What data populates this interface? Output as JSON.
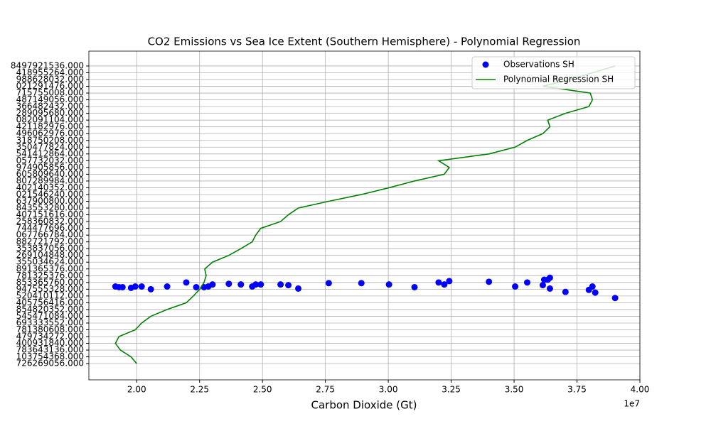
{
  "chart_data": {
    "type": "scatter",
    "title": "CO2 Emissions vs Sea Ice Extent (Southern Hemisphere) - Polynomial Regression",
    "xlabel": "Carbon Dioxide (Gt)",
    "x_offset_label": "1e7",
    "xlim": [
      18100000,
      40000000
    ],
    "xticks": [
      {
        "value": 20000000,
        "label": "2.00"
      },
      {
        "value": 22500000,
        "label": "2.25"
      },
      {
        "value": 25000000,
        "label": "2.50"
      },
      {
        "value": 27500000,
        "label": "2.75"
      },
      {
        "value": 30000000,
        "label": "3.00"
      },
      {
        "value": 32500000,
        "label": "3.25"
      },
      {
        "value": 35000000,
        "label": "3.50"
      },
      {
        "value": 37500000,
        "label": "3.75"
      },
      {
        "value": 40000000,
        "label": "4.00"
      }
    ],
    "ylim": [
      -2.4,
      46.2
    ],
    "y_categories": [
      "726269056.000",
      "103754368.000",
      "783643136.000",
      "400931840.000",
      "479734272.000",
      "781380608.000",
      "693333552.000",
      "545471084.000",
      "854820352.000",
      "405756416.000",
      "520410112.000",
      "947555328.000",
      "853365760.000",
      "781325376.000",
      "891365376.000",
      "355034624.000",
      "269104848.000",
      "353837056.000",
      "882721792.000",
      "067766784.000",
      "744477696.000",
      "258360832.000",
      "407151616.000",
      "843553280.000",
      "637900800.000",
      "021546240.000",
      "402140352.000",
      "807289984.000",
      "605809640.000",
      "974905856.000",
      "057732032.000",
      "541412864.000",
      "350477824.000",
      "318750208.000",
      "496062976.000",
      "421182976.000",
      "082091104.000",
      "289095680.000",
      "366482432.000",
      "487149056.000",
      "715755008.000",
      "021291476.000",
      "988628032.000",
      "418955264.000",
      "8497921536.000"
    ],
    "grid": true,
    "legend": "upper right",
    "scatter": {
      "name": "Observations SH",
      "color": "#0000ff",
      "x": [
        19155000,
        19296000,
        19437000,
        19775000,
        19944000,
        20197000,
        20563000,
        21211000,
        21972000,
        22366000,
        22676000,
        22845000,
        23014000,
        23662000,
        24141000,
        24592000,
        24732000,
        24930000,
        25718000,
        26028000,
        26423000,
        27634000,
        28930000,
        30028000,
        31042000,
        32000000,
        32225000,
        32423000,
        34000000,
        35042000,
        35521000,
        36141000,
        36197000,
        36338000,
        36423000,
        36423000,
        37042000,
        37972000,
        38113000,
        38225000,
        39014000
      ],
      "y": [
        11.4,
        11.3,
        11.3,
        11.2,
        11.4,
        11.4,
        11.0,
        11.4,
        12.0,
        11.3,
        11.3,
        11.4,
        11.7,
        11.8,
        11.7,
        11.4,
        11.7,
        11.7,
        11.7,
        11.6,
        11.1,
        11.9,
        11.9,
        11.7,
        11.3,
        12.0,
        11.7,
        12.2,
        12.1,
        11.4,
        12.0,
        11.6,
        12.4,
        12.4,
        12.7,
        11.1,
        10.6,
        10.9,
        11.4,
        10.5,
        9.7
      ]
    },
    "line": {
      "name": "Polynomial Regression SH",
      "color": "#008000",
      "x": [
        20000000,
        19775000,
        19352000,
        19155000,
        19296000,
        19944000,
        20197000,
        20563000,
        21211000,
        21972000,
        22254000,
        22507000,
        22676000,
        22761000,
        22704000,
        23014000,
        23662000,
        24141000,
        24592000,
        24732000,
        24930000,
        25718000,
        26028000,
        26423000,
        27634000,
        28930000,
        30028000,
        31042000,
        32225000,
        32423000,
        32000000,
        34000000,
        35042000,
        35521000,
        36141000,
        36423000,
        36338000,
        37042000,
        37972000,
        38113000,
        38028000,
        36141000,
        37183000,
        38113000,
        39014000
      ]
    }
  }
}
